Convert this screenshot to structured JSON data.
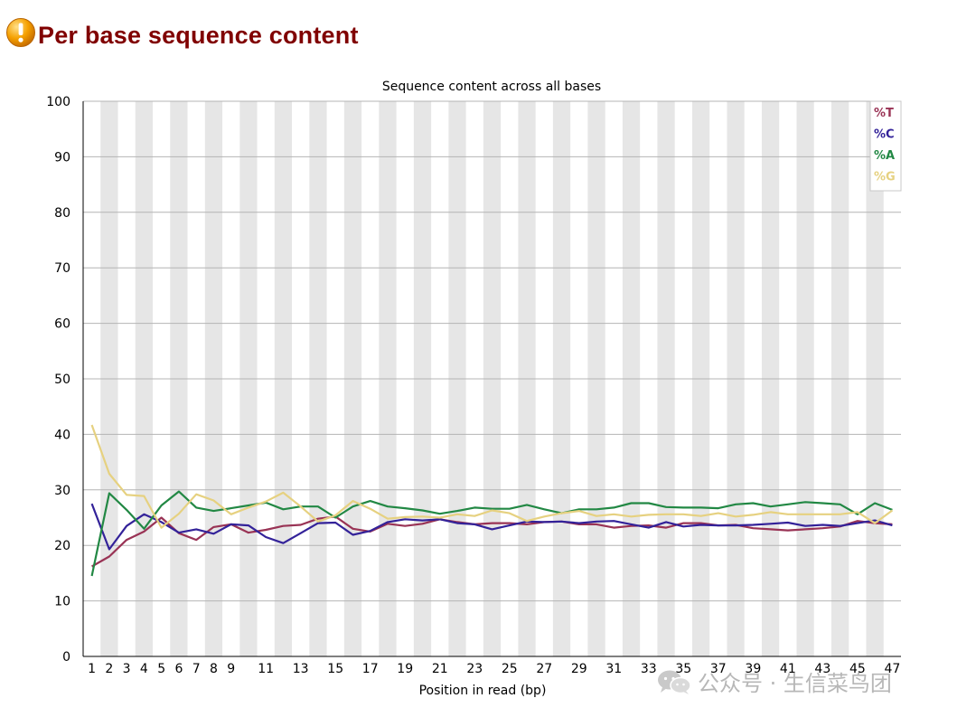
{
  "header": {
    "title": "Per base sequence content",
    "status_icon": "warning-icon",
    "status_color": "#f5a000"
  },
  "watermark": {
    "text": "公众号 · 生信菜鸟团",
    "icon": "wechat-icon"
  },
  "chart_data": {
    "type": "line",
    "title": "Sequence content across all bases",
    "xlabel": "Position in read (bp)",
    "ylabel": "",
    "ylim": [
      0,
      100
    ],
    "yticks": [
      0,
      10,
      20,
      30,
      40,
      50,
      60,
      70,
      80,
      90,
      100
    ],
    "categories": [
      "1",
      "2",
      "3",
      "4",
      "5",
      "6",
      "7",
      "8",
      "9",
      "10",
      "11",
      "12",
      "13",
      "14",
      "15",
      "16",
      "17",
      "18",
      "19",
      "20",
      "21",
      "22",
      "23",
      "24",
      "25",
      "26",
      "27",
      "28",
      "29",
      "30",
      "31",
      "32",
      "33",
      "34",
      "35",
      "36",
      "37",
      "38",
      "39",
      "40",
      "41",
      "42",
      "43",
      "44",
      "45",
      "46",
      "47"
    ],
    "tick_labels": [
      "1",
      "2",
      "3",
      "4",
      "5",
      "6",
      "7",
      "8",
      "9",
      "",
      "11",
      "",
      "13",
      "",
      "15",
      "",
      "17",
      "",
      "19",
      "",
      "21",
      "",
      "23",
      "",
      "25",
      "",
      "27",
      "",
      "29",
      "",
      "31",
      "",
      "33",
      "",
      "35",
      "",
      "37",
      "",
      "39",
      "",
      "41",
      "",
      "43",
      "",
      "45",
      "",
      "47"
    ],
    "grid": true,
    "legend_position": "top-right",
    "series": [
      {
        "name": "%T",
        "color": "#993355",
        "values": [
          16.2,
          18.0,
          21.0,
          22.5,
          25.0,
          22.2,
          21.0,
          23.3,
          23.8,
          22.3,
          22.8,
          23.5,
          23.7,
          24.8,
          25.2,
          23.0,
          22.5,
          23.9,
          23.5,
          23.9,
          24.7,
          24.2,
          23.8,
          24.0,
          24.0,
          23.8,
          24.2,
          24.3,
          23.8,
          23.8,
          23.2,
          23.5,
          23.6,
          23.2,
          24.0,
          24.0,
          23.6,
          23.7,
          23.1,
          22.9,
          22.7,
          22.9,
          23.1,
          23.4,
          24.4,
          24.0,
          23.8
        ]
      },
      {
        "name": "%C",
        "color": "#332299",
        "values": [
          27.5,
          19.3,
          23.5,
          25.6,
          24.2,
          22.3,
          22.9,
          22.1,
          23.8,
          23.6,
          21.5,
          20.4,
          22.2,
          24.0,
          24.1,
          21.9,
          22.6,
          24.2,
          24.7,
          24.5,
          24.7,
          24.0,
          23.8,
          22.9,
          23.6,
          24.3,
          24.2,
          24.3,
          24.0,
          24.3,
          24.4,
          23.8,
          23.2,
          24.2,
          23.4,
          23.7,
          23.6,
          23.6,
          23.7,
          23.9,
          24.1,
          23.5,
          23.7,
          23.5,
          24.0,
          24.5,
          23.6
        ]
      },
      {
        "name": "%A",
        "color": "#228844",
        "values": [
          14.5,
          29.4,
          26.4,
          23.0,
          27.2,
          29.7,
          26.8,
          26.2,
          26.7,
          27.2,
          27.7,
          26.5,
          27.0,
          27.0,
          25.0,
          27.0,
          28.0,
          27.0,
          26.7,
          26.3,
          25.7,
          26.2,
          26.8,
          26.6,
          26.6,
          27.3,
          26.5,
          25.8,
          26.5,
          26.5,
          26.8,
          27.6,
          27.6,
          26.9,
          26.8,
          26.8,
          26.7,
          27.4,
          27.6,
          27.0,
          27.4,
          27.8,
          27.6,
          27.4,
          25.6,
          27.6,
          26.4
        ]
      },
      {
        "name": "%G",
        "color": "#e6d180",
        "values": [
          41.7,
          32.9,
          29.1,
          28.9,
          23.2,
          25.7,
          29.2,
          28.1,
          25.6,
          26.8,
          27.9,
          29.5,
          27.0,
          24.3,
          25.4,
          28.0,
          26.6,
          24.8,
          25.1,
          25.2,
          25.0,
          25.6,
          25.3,
          26.3,
          25.8,
          24.4,
          25.2,
          25.8,
          26.2,
          25.3,
          25.6,
          25.2,
          25.5,
          25.6,
          25.6,
          25.3,
          25.8,
          25.2,
          25.5,
          26.0,
          25.6,
          25.6,
          25.6,
          25.6,
          26.0,
          24.0,
          26.3
        ]
      }
    ]
  }
}
